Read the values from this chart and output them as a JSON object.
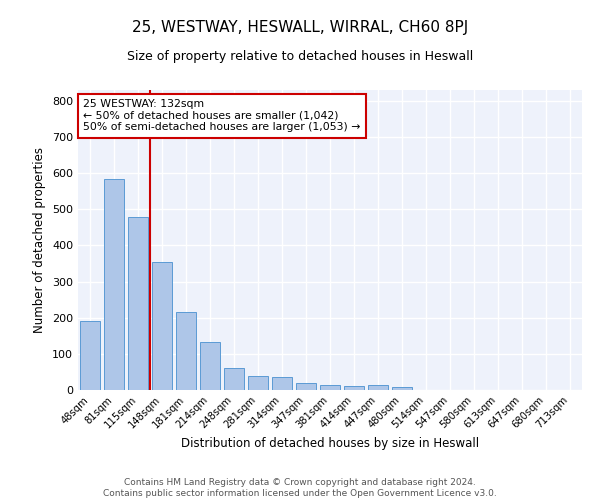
{
  "title": "25, WESTWAY, HESWALL, WIRRAL, CH60 8PJ",
  "subtitle": "Size of property relative to detached houses in Heswall",
  "xlabel": "Distribution of detached houses by size in Heswall",
  "ylabel": "Number of detached properties",
  "categories": [
    "48sqm",
    "81sqm",
    "115sqm",
    "148sqm",
    "181sqm",
    "214sqm",
    "248sqm",
    "281sqm",
    "314sqm",
    "347sqm",
    "381sqm",
    "414sqm",
    "447sqm",
    "480sqm",
    "514sqm",
    "547sqm",
    "580sqm",
    "613sqm",
    "647sqm",
    "680sqm",
    "713sqm"
  ],
  "values": [
    192,
    583,
    480,
    355,
    215,
    132,
    62,
    40,
    35,
    20,
    15,
    10,
    13,
    9,
    0,
    0,
    0,
    0,
    0,
    0,
    0
  ],
  "bar_color": "#aec6e8",
  "bar_edge_color": "#5b9bd5",
  "vline_color": "#cc0000",
  "annotation_text": "25 WESTWAY: 132sqm\n← 50% of detached houses are smaller (1,042)\n50% of semi-detached houses are larger (1,053) →",
  "annotation_box_color": "#ffffff",
  "annotation_box_edge_color": "#cc0000",
  "ylim": [
    0,
    830
  ],
  "yticks": [
    0,
    100,
    200,
    300,
    400,
    500,
    600,
    700,
    800
  ],
  "bg_color": "#eef2fb",
  "grid_color": "#ffffff",
  "footer": "Contains HM Land Registry data © Crown copyright and database right 2024.\nContains public sector information licensed under the Open Government Licence v3.0.",
  "title_fontsize": 11,
  "subtitle_fontsize": 9,
  "footer_fontsize": 6.5
}
